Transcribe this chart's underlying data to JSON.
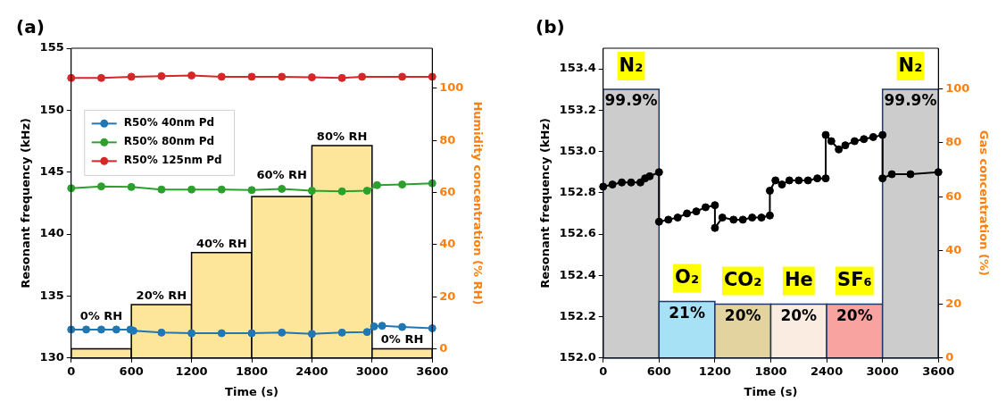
{
  "chart_data": [
    {
      "type": "line",
      "title": "(a)",
      "xlabel": "Time (s)",
      "ylabel": "Resonant frequency (kHz)",
      "y2label": "Humidity concentration (% RH)",
      "xlim": [
        0,
        3600
      ],
      "xticks": [
        0,
        600,
        1200,
        1800,
        2400,
        3000,
        3600
      ],
      "ylim": [
        130,
        155
      ],
      "yticks": [
        130,
        135,
        140,
        145,
        150,
        155
      ],
      "y2lim": [
        -3.5,
        115.4
      ],
      "y2ticks": [
        0,
        20,
        40,
        60,
        80,
        100
      ],
      "legend": "top left",
      "marker": "circle",
      "series": [
        {
          "name": "R50% 40nm Pd",
          "color": "#1f77b4",
          "x": [
            0,
            150,
            300,
            450,
            590,
            620,
            900,
            1200,
            1500,
            1800,
            2100,
            2400,
            2700,
            2950,
            3020,
            3100,
            3300,
            3600
          ],
          "values": [
            132.3,
            132.3,
            132.3,
            132.3,
            132.3,
            132.2,
            132.05,
            132.0,
            132.0,
            132.0,
            132.05,
            131.95,
            132.05,
            132.1,
            132.55,
            132.6,
            132.5,
            132.4
          ]
        },
        {
          "name": "R50% 80nm Pd",
          "color": "#2ca02c",
          "x": [
            0,
            300,
            600,
            900,
            1200,
            1500,
            1800,
            2100,
            2400,
            2700,
            2950,
            3050,
            3300,
            3600
          ],
          "values": [
            143.7,
            143.85,
            143.8,
            143.6,
            143.6,
            143.6,
            143.55,
            143.65,
            143.5,
            143.45,
            143.5,
            143.95,
            144.0,
            144.1
          ]
        },
        {
          "name": "R50% 125nm Pd",
          "color": "#d62728",
          "x": [
            0,
            300,
            600,
            900,
            1200,
            1500,
            1800,
            2100,
            2400,
            2700,
            2900,
            3300,
            3600
          ],
          "values": [
            152.6,
            152.6,
            152.7,
            152.75,
            152.8,
            152.7,
            152.7,
            152.7,
            152.65,
            152.6,
            152.7,
            152.7,
            152.7
          ]
        },
        {
          "type": "histogram",
          "axis": "y2",
          "color": "#fde59a",
          "bins": [
            0,
            600,
            1200,
            1800,
            2400,
            3000,
            3600
          ],
          "base": [
            -3.5,
            -3.5,
            -3.5,
            -3.5,
            -3.5,
            -3.5
          ],
          "values": [
            3.5,
            20.5,
            40.5,
            62,
            81.5,
            3.5
          ]
        }
      ],
      "annotations": [
        "0% RH",
        "20% RH",
        "40% RH",
        "60% RH",
        "80% RH",
        "0% RH"
      ]
    },
    {
      "type": "line",
      "title": "(b)",
      "xlabel": "Time (s)",
      "ylabel": "Resonant frequency (kHz)",
      "y2label": "Gas concentration (%)",
      "xlim": [
        0,
        3600
      ],
      "xticks": [
        0,
        600,
        1200,
        1800,
        2400,
        3000,
        3600
      ],
      "ylim": [
        152.0,
        153.5
      ],
      "yticks": [
        {
          "value": 152,
          "label": "152.0"
        },
        152.2,
        152.4,
        152.6,
        152.8,
        {
          "value": 153,
          "label": "153.0"
        },
        153.2,
        153.4
      ],
      "y2lim": [
        0,
        115.2
      ],
      "y2ticks": [
        0,
        20,
        40,
        60,
        80,
        100
      ],
      "marker": "circle",
      "series": [
        {
          "color": "#000000",
          "x": [
            0,
            100,
            200,
            300,
            400,
            450,
            500,
            600,
            600,
            700,
            800,
            900,
            1000,
            1100,
            1200,
            1200,
            1280,
            1400,
            1500,
            1600,
            1700,
            1790,
            1790,
            1850,
            1920,
            2000,
            2100,
            2200,
            2300,
            2390,
            2390,
            2450,
            2530,
            2600,
            2700,
            2800,
            2900,
            3000,
            3000,
            3100,
            3300,
            3600
          ],
          "values": [
            152.83,
            152.84,
            152.85,
            152.85,
            152.85,
            152.87,
            152.88,
            152.9,
            152.66,
            152.67,
            152.68,
            152.7,
            152.71,
            152.73,
            152.74,
            152.63,
            152.68,
            152.67,
            152.67,
            152.68,
            152.68,
            152.69,
            152.81,
            152.86,
            152.84,
            152.86,
            152.86,
            152.86,
            152.87,
            152.87,
            153.08,
            153.05,
            153.01,
            153.03,
            153.05,
            153.06,
            153.07,
            153.08,
            152.87,
            152.89,
            152.89,
            152.9
          ]
        },
        {
          "type": "histogram",
          "axis": "y2",
          "colors": [
            "#cccccc",
            "#a6e1f6",
            "#e3d39f",
            "#fbece1",
            "#f9a3a0",
            "#cccccc"
          ],
          "bins": [
            0,
            600,
            1200,
            1800,
            2400,
            3000,
            3600
          ],
          "values": [
            99.9,
            21,
            20,
            20,
            20,
            99.9
          ],
          "value_labels": [
            "99.9%",
            "21%",
            "20%",
            "20%",
            "20%",
            "99.9%"
          ]
        }
      ],
      "annotations": [
        "N₂",
        "O₂",
        "CO₂",
        "He",
        "SF₆",
        "N₂"
      ]
    }
  ]
}
